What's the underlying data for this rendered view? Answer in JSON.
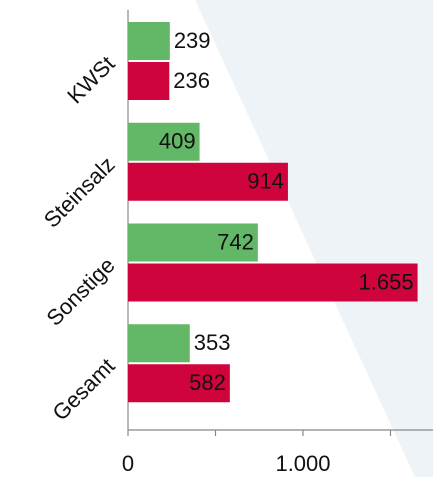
{
  "chart_data": {
    "type": "hbar",
    "categories": [
      "KWSt",
      "Steinsalz",
      "Sonstige",
      "Gesamt"
    ],
    "series": [
      {
        "color": "#62b866",
        "values": [
          239,
          409,
          742,
          353
        ],
        "value_labels": [
          "239",
          "409",
          "742",
          "353"
        ]
      },
      {
        "color": "#d0043c",
        "values": [
          236,
          914,
          1655,
          582
        ],
        "value_labels": [
          "236",
          "914",
          "1.655",
          "582"
        ]
      }
    ],
    "xlim": [
      0,
      1743
    ],
    "xticks": [
      0,
      {
        "value": 1000,
        "label": "1.000"
      }
    ],
    "xminor_ticks": [
      500,
      1500
    ]
  }
}
